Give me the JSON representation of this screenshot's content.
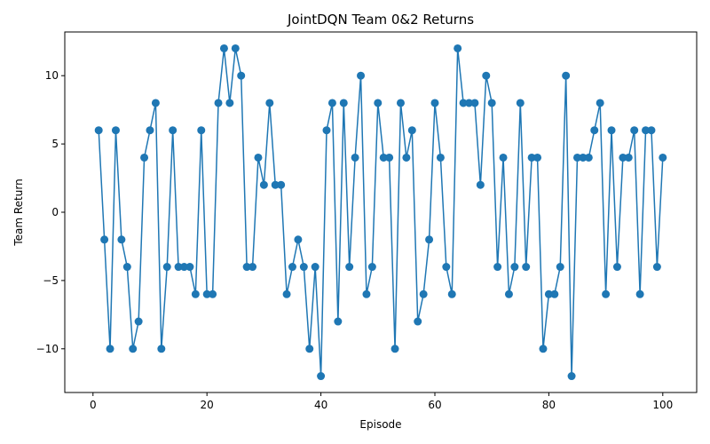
{
  "chart_data": {
    "type": "line",
    "title": "JointDQN Team 0&2 Returns",
    "xlabel": "Episode",
    "ylabel": "Team Return",
    "xlim": [
      -4.95,
      105.95
    ],
    "ylim": [
      -13.2,
      13.2
    ],
    "xticks": [
      0,
      20,
      40,
      60,
      80,
      100
    ],
    "xtick_labels": [
      "0",
      "20",
      "40",
      "60",
      "80",
      "100"
    ],
    "yticks": [
      -10,
      -5,
      0,
      5,
      10
    ],
    "ytick_labels": [
      "−10",
      "−5",
      "0",
      "5",
      "10"
    ],
    "grid": false,
    "legend": "none",
    "color": "#1f77b4",
    "series": [
      {
        "x": [
          1,
          2,
          3,
          4,
          5,
          6,
          7,
          8,
          9,
          10,
          11,
          12,
          13,
          14,
          15,
          16,
          17,
          18,
          19,
          20,
          21,
          22,
          23,
          24,
          25,
          26,
          27,
          28,
          29,
          30,
          31,
          32,
          33,
          34,
          35,
          36,
          37,
          38,
          39,
          40,
          41,
          42,
          43,
          44,
          45,
          46,
          47,
          48,
          49,
          50,
          51,
          52,
          53,
          54,
          55,
          56,
          57,
          58,
          59,
          60,
          61,
          62,
          63,
          64,
          65,
          66,
          67,
          68,
          69,
          70,
          71,
          72,
          73,
          74,
          75,
          76,
          77,
          78,
          79,
          80,
          81,
          82,
          83,
          84,
          85,
          86,
          87,
          88,
          89,
          90,
          91,
          92,
          93,
          94,
          95,
          96,
          97,
          98,
          99,
          100
        ],
        "y": [
          6,
          -2,
          -10,
          6,
          -2,
          -4,
          -10,
          -8,
          4,
          6,
          8,
          -10,
          -4,
          6,
          -4,
          -4,
          -4,
          -6,
          6,
          -6,
          -6,
          8,
          12,
          8,
          12,
          10,
          -4,
          -4,
          4,
          2,
          8,
          2,
          2,
          -6,
          -4,
          -2,
          -4,
          -10,
          -4,
          -12,
          6,
          8,
          -8,
          8,
          -4,
          4,
          10,
          -6,
          -4,
          8,
          4,
          4,
          -10,
          8,
          4,
          6,
          -8,
          -6,
          -2,
          8,
          4,
          -4,
          -6,
          12,
          8,
          8,
          8,
          2,
          10,
          8,
          -4,
          4,
          -6,
          -4,
          8,
          -4,
          4,
          4,
          -10,
          -6,
          -6,
          -4,
          10,
          -12,
          4,
          4,
          4,
          6,
          8,
          -6,
          6,
          -4,
          4,
          4,
          6,
          -6,
          6,
          6,
          -4,
          4
        ]
      }
    ]
  }
}
